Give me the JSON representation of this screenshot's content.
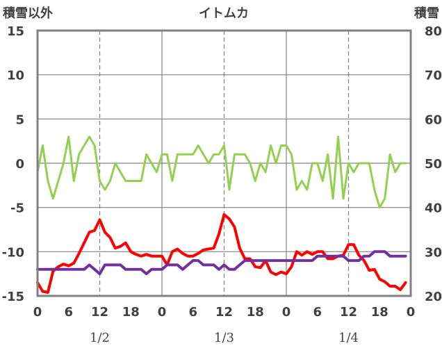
{
  "chart_data": {
    "type": "line",
    "title": "イトムカ",
    "y_left_label": "積雪以外",
    "y_right_label": "積雪",
    "y_left_ticks": [
      "15",
      "10",
      "5",
      "0",
      "-5",
      "-10",
      "-15"
    ],
    "y_right_ticks": [
      "80",
      "70",
      "60",
      "50",
      "40",
      "30",
      "20"
    ],
    "x_ticks": [
      "0",
      "6",
      "12",
      "18",
      "0",
      "6",
      "12",
      "18",
      "0",
      "6",
      "12",
      "18",
      "0"
    ],
    "date_labels": [
      "1/2",
      "1/3",
      "1/4"
    ],
    "ylim_left": [
      -15,
      15
    ],
    "ylim_right": [
      20,
      80
    ],
    "x_range_hours": [
      0,
      72
    ],
    "grid": true,
    "series": [
      {
        "axis": "left",
        "color": "#92d050",
        "values": [
          -1,
          2,
          -2,
          -4,
          -2,
          0,
          3,
          -2,
          1,
          2,
          3,
          2,
          -2,
          -3,
          -2,
          0,
          -1,
          -2,
          -2,
          -2,
          -2,
          1,
          0,
          -1,
          1,
          1,
          -2,
          1,
          1,
          1,
          1,
          2,
          1,
          0,
          1,
          1,
          2,
          -3,
          1,
          1,
          1,
          0,
          -2,
          0,
          -1,
          2,
          0,
          2,
          2,
          1,
          -3,
          -2,
          -3,
          0,
          0,
          -2,
          1,
          -4,
          3,
          -4,
          0,
          -1,
          0,
          0,
          0,
          -3,
          -5,
          -4,
          1,
          -1,
          0,
          0
        ]
      },
      {
        "axis": "left",
        "color": "#ff0000",
        "values": [
          -13.5,
          -14.5,
          -14.6,
          -12.2,
          -11.7,
          -11.4,
          -11.6,
          -11.3,
          -10.2,
          -9.0,
          -7.8,
          -7.6,
          -6.4,
          -7.8,
          -8.4,
          -9.6,
          -9.4,
          -9.0,
          -10.0,
          -10.3,
          -10.5,
          -10.3,
          -10.5,
          -10.5,
          -10.5,
          -11.5,
          -10.0,
          -9.7,
          -10.2,
          -10.5,
          -10.5,
          -10.2,
          -9.8,
          -9.7,
          -9.6,
          -8.0,
          -5.8,
          -6.3,
          -7.2,
          -9.6,
          -10.8,
          -10.8,
          -11.7,
          -11.8,
          -11.0,
          -12.3,
          -12.6,
          -12.3,
          -12.5,
          -11.7,
          -10.0,
          -10.4,
          -10.0,
          -10.3,
          -10.0,
          -10.0,
          -10.8,
          -10.8,
          -10.5,
          -10.4,
          -9.2,
          -9.2,
          -10.4,
          -11.0,
          -12.1,
          -12.0,
          -13.1,
          -13.4,
          -13.9,
          -13.9,
          -14.3,
          -13.5
        ]
      },
      {
        "axis": "right",
        "color": "#7030a0",
        "values": [
          26,
          26,
          26,
          26,
          26,
          26,
          26,
          26,
          26,
          26,
          27,
          26,
          25,
          27,
          27,
          27,
          27,
          26,
          26,
          26,
          26,
          25,
          26,
          26,
          26,
          27,
          27,
          27,
          26,
          27,
          28,
          28,
          27,
          27,
          27,
          26,
          27,
          26,
          26,
          27,
          28,
          28,
          28,
          28,
          28,
          28,
          28,
          28,
          28,
          28,
          28,
          28,
          28,
          28,
          29,
          29,
          29,
          29,
          29,
          29,
          28,
          28,
          28,
          29,
          29,
          30,
          30,
          30,
          29,
          29,
          29,
          29
        ]
      }
    ]
  }
}
